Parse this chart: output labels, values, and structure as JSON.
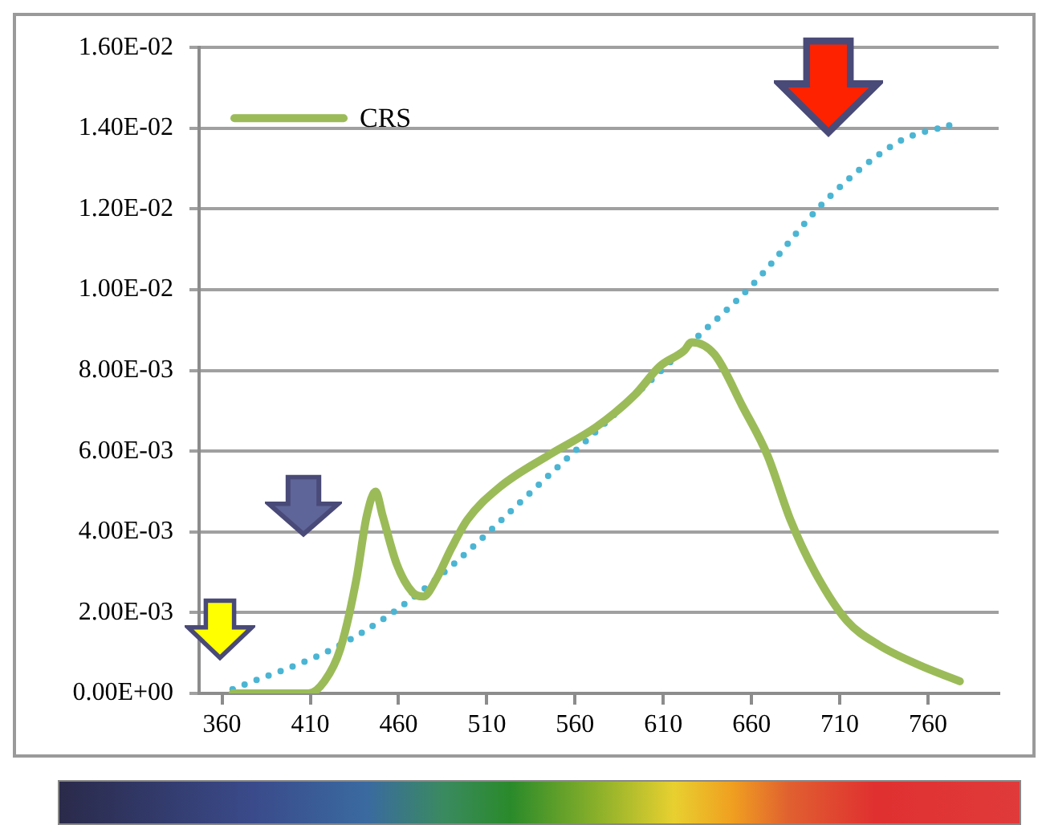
{
  "chart_data": {
    "type": "line",
    "xlim": [
      347,
      800
    ],
    "xticks": [
      360,
      410,
      460,
      510,
      560,
      610,
      660,
      710,
      760
    ],
    "ylim": [
      0,
      0.016
    ],
    "yticks": [
      {
        "value": 0,
        "label": "0.00E+00"
      },
      {
        "value": 0.002,
        "label": "2.00E-03"
      },
      {
        "value": 0.004,
        "label": "4.00E-03"
      },
      {
        "value": 0.006,
        "label": "6.00E-03"
      },
      {
        "value": 0.008,
        "label": "8.00E-03"
      },
      {
        "value": 0.01,
        "label": "1.00E-02"
      },
      {
        "value": 0.012,
        "label": "1.20E-02"
      },
      {
        "value": 0.014,
        "label": "1.40E-02"
      },
      {
        "value": 0.016,
        "label": "1.60E-02"
      }
    ],
    "grid": "y",
    "legend": "top left",
    "marker": "none",
    "series": [
      {
        "name": "CRS",
        "color": "#9bbb59",
        "line_style": "solid",
        "x": [
          366,
          409,
          418,
          427,
          436,
          442,
          447,
          451,
          459,
          468,
          474,
          481,
          490,
          499,
          517,
          545,
          572,
          594,
          608,
          622,
          626,
          639,
          655,
          669,
          682,
          696,
          714,
          732,
          755,
          778
        ],
        "values": [
          0,
          0,
          0.0003,
          0.0011,
          0.0028,
          0.0044,
          0.005,
          0.0044,
          0.0032,
          0.0025,
          0.0024,
          0.0028,
          0.0036,
          0.0043,
          0.0051,
          0.0059,
          0.0066,
          0.0074,
          0.0081,
          0.0085,
          0.0087,
          0.0084,
          0.0071,
          0.0059,
          0.0043,
          0.003,
          0.0018,
          0.0012,
          0.0007,
          0.0003
        ]
      },
      {
        "color": "#4bb5d3",
        "line_style": "dotted",
        "x": [
          366,
          427,
          472,
          550,
          626,
          660,
          703,
          744,
          772
        ],
        "values": [
          0.0001,
          0.0012,
          0.0025,
          0.0056,
          0.0087,
          0.0101,
          0.01225,
          0.01368,
          0.01407
        ]
      }
    ]
  }
}
